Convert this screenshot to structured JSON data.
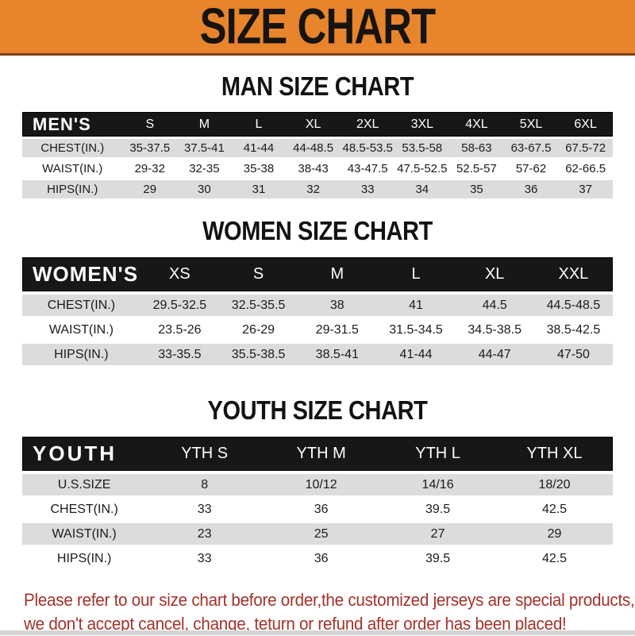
{
  "banner": {
    "title": "SIZE CHART"
  },
  "colors": {
    "banner_bg": "#E8842C",
    "banner_edge": "#7E3F12",
    "table_header_bg": "#171717",
    "row_shade": "#DCDCDC",
    "footer_text": "#A3322C"
  },
  "sections": {
    "mens": {
      "title": "MAN SIZE CHART",
      "label": "MEN'S",
      "sizes": [
        "S",
        "M",
        "L",
        "XL",
        "2XL",
        "3XL",
        "4XL",
        "5XL",
        "6XL"
      ],
      "rows": [
        {
          "label": "CHEST(IN.)",
          "values": [
            "35-37.5",
            "37.5-41",
            "41-44",
            "44-48.5",
            "48.5-53.5",
            "53.5-58",
            "58-63",
            "63-67.5",
            "67.5-72"
          ]
        },
        {
          "label": "WAIST(IN.)",
          "values": [
            "29-32",
            "32-35",
            "35-38",
            "38-43",
            "43-47.5",
            "47.5-52.5",
            "52.5-57",
            "57-62",
            "62-66.5"
          ]
        },
        {
          "label": "HIPS(IN.)",
          "values": [
            "29",
            "30",
            "31",
            "32",
            "33",
            "34",
            "35",
            "36",
            "37"
          ]
        }
      ]
    },
    "womens": {
      "title": "WOMEN SIZE CHART",
      "label": "WOMEN'S",
      "sizes": [
        "XS",
        "S",
        "M",
        "L",
        "XL",
        "XXL"
      ],
      "rows": [
        {
          "label": "CHEST(IN.)",
          "values": [
            "29.5-32.5",
            "32.5-35.5",
            "38",
            "41",
            "44.5",
            "44.5-48.5"
          ]
        },
        {
          "label": "WAIST(IN.)",
          "values": [
            "23.5-26",
            "26-29",
            "29-31.5",
            "31.5-34.5",
            "34.5-38.5",
            "38.5-42.5"
          ]
        },
        {
          "label": "HIPS(IN.)",
          "values": [
            "33-35.5",
            "35.5-38.5",
            "38.5-41",
            "41-44",
            "44-47",
            "47-50"
          ]
        }
      ]
    },
    "youth": {
      "title": "YOUTH SIZE CHART",
      "label": "YOUTH",
      "sizes": [
        "YTH S",
        "YTH M",
        "YTH L",
        "YTH XL"
      ],
      "rows": [
        {
          "label": "U.S.SIZE",
          "values": [
            "8",
            "10/12",
            "14/16",
            "18/20"
          ]
        },
        {
          "label": "CHEST(IN.)",
          "values": [
            "33",
            "36",
            "39.5",
            "42.5"
          ]
        },
        {
          "label": "WAIST(IN.)",
          "values": [
            "23",
            "25",
            "27",
            "29"
          ]
        },
        {
          "label": "HIPS(IN.)",
          "values": [
            "33",
            "36",
            "39.5",
            "42.5"
          ]
        }
      ]
    }
  },
  "footer": {
    "line1": "Please refer to our size chart before order,the customized jerseys are special products,",
    "line2": "we don't accept cancel, change, teturn or refund after order has been placed!"
  }
}
